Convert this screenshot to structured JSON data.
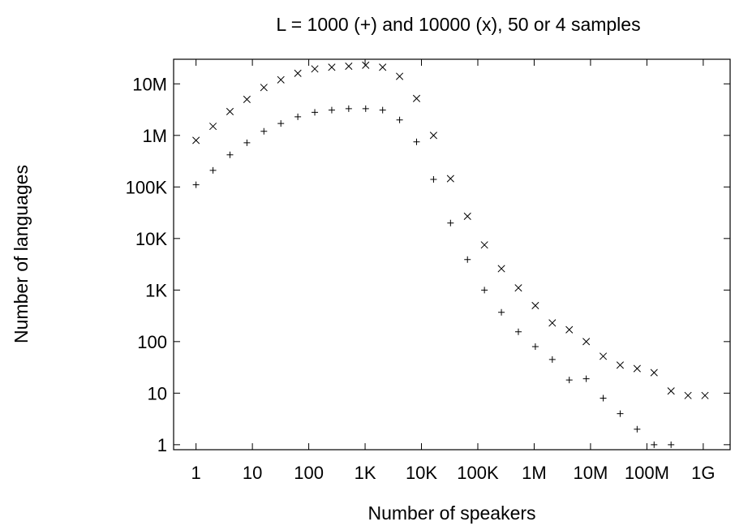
{
  "chart_data": {
    "type": "scatter",
    "title": "L = 1000 (+) and 10000 (x), 50 or 4 samples",
    "xlabel": "Number of speakers",
    "ylabel": "Number of languages",
    "xscale": "log",
    "yscale": "log",
    "xlim": [
      0.4,
      3000000000
    ],
    "ylim": [
      0.8,
      30000000
    ],
    "x_ticks": [
      {
        "value": 1,
        "label": "1"
      },
      {
        "value": 10,
        "label": "10"
      },
      {
        "value": 100,
        "label": "100"
      },
      {
        "value": 1000,
        "label": "1K"
      },
      {
        "value": 10000,
        "label": "10K"
      },
      {
        "value": 100000,
        "label": "100K"
      },
      {
        "value": 1000000,
        "label": "1M"
      },
      {
        "value": 10000000,
        "label": "10M"
      },
      {
        "value": 100000000,
        "label": "100M"
      },
      {
        "value": 1000000000,
        "label": "1G"
      }
    ],
    "y_ticks": [
      {
        "value": 1,
        "label": "1"
      },
      {
        "value": 10,
        "label": "10"
      },
      {
        "value": 100,
        "label": "100"
      },
      {
        "value": 1000,
        "label": "1K"
      },
      {
        "value": 10000,
        "label": "10K"
      },
      {
        "value": 100000,
        "label": "100K"
      },
      {
        "value": 1000000,
        "label": "1M"
      },
      {
        "value": 10000000,
        "label": "10M"
      }
    ],
    "grid": false,
    "legend": "none",
    "series": [
      {
        "marker": "plus",
        "x": [
          1,
          2,
          4,
          8,
          16,
          32,
          64,
          128,
          256,
          512,
          1024,
          2048,
          4096,
          8192,
          16384,
          32768,
          65536,
          131072,
          262144,
          524288,
          1048576,
          2097152,
          4194304,
          8388608,
          16777216,
          33554432,
          67108864,
          134217728,
          268435456
        ],
        "y": [
          110000,
          210000,
          420000,
          720000,
          1200000,
          1700000,
          2300000,
          2800000,
          3100000,
          3300000,
          3300000,
          3100000,
          2000000,
          750000,
          140000,
          20000,
          3900,
          1000,
          370,
          155,
          80,
          45,
          18,
          19,
          8,
          4,
          2,
          1,
          1
        ]
      },
      {
        "marker": "cross",
        "x": [
          1,
          2,
          4,
          8,
          16,
          32,
          64,
          128,
          256,
          512,
          1024,
          2048,
          4096,
          8192,
          16384,
          32768,
          65536,
          131072,
          262144,
          524288,
          1048576,
          2097152,
          4194304,
          8388608,
          16777216,
          33554432,
          67108864,
          134217728,
          268435456,
          536870912,
          1073741824
        ],
        "y": [
          800000,
          1500000,
          2900000,
          5000000,
          8500000,
          12000000,
          16000000,
          19500000,
          21000000,
          22000000,
          23000000,
          21000000,
          14000000,
          5200000,
          1000000,
          145000,
          27000,
          7500,
          2600,
          1100,
          500,
          230,
          170,
          100,
          52,
          35,
          30,
          25,
          11,
          9,
          9
        ]
      }
    ]
  }
}
